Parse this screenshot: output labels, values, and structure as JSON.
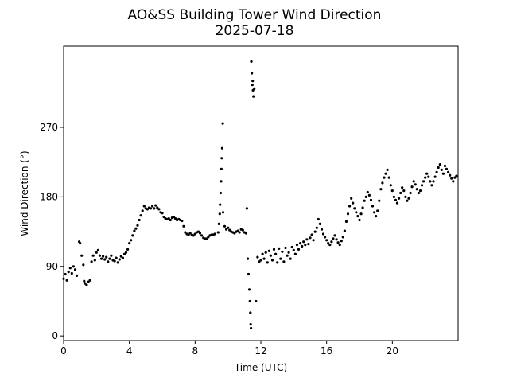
{
  "chart_data": {
    "type": "scatter",
    "title": "AO&SS Building Tower Wind Direction",
    "subtitle": "2025-07-18",
    "xlabel": "Time (UTC)",
    "ylabel": "Wind Direction (°)",
    "xlim": [
      0,
      24
    ],
    "ylim": [
      -6,
      375
    ],
    "xticks": [
      0,
      4,
      8,
      12,
      16,
      20
    ],
    "yticks": [
      0,
      90,
      180,
      270
    ],
    "grid": false,
    "legend": "none",
    "marker_color": "#000000",
    "series": [
      {
        "points": [
          [
            0.0,
            74
          ],
          [
            0.1,
            80
          ],
          [
            0.2,
            72
          ],
          [
            0.3,
            83
          ],
          [
            0.4,
            88
          ],
          [
            0.5,
            81
          ],
          [
            0.6,
            90
          ],
          [
            0.7,
            86
          ],
          [
            0.8,
            78
          ],
          [
            0.95,
            122
          ],
          [
            1.0,
            120
          ],
          [
            1.1,
            104
          ],
          [
            1.2,
            92
          ],
          [
            1.25,
            71
          ],
          [
            1.3,
            68
          ],
          [
            1.4,
            66
          ],
          [
            1.5,
            70
          ],
          [
            1.6,
            72
          ],
          [
            1.7,
            96
          ],
          [
            1.8,
            104
          ],
          [
            1.9,
            98
          ],
          [
            2.0,
            108
          ],
          [
            2.1,
            111
          ],
          [
            2.2,
            104
          ],
          [
            2.3,
            100
          ],
          [
            2.4,
            103
          ],
          [
            2.5,
            99
          ],
          [
            2.6,
            102
          ],
          [
            2.7,
            96
          ],
          [
            2.8,
            100
          ],
          [
            2.9,
            104
          ],
          [
            3.0,
            98
          ],
          [
            3.1,
            97
          ],
          [
            3.2,
            101
          ],
          [
            3.3,
            95
          ],
          [
            3.4,
            99
          ],
          [
            3.5,
            103
          ],
          [
            3.6,
            101
          ],
          [
            3.7,
            106
          ],
          [
            3.8,
            108
          ],
          [
            3.9,
            112
          ],
          [
            4.0,
            120
          ],
          [
            4.1,
            124
          ],
          [
            4.2,
            130
          ],
          [
            4.3,
            136
          ],
          [
            4.4,
            139
          ],
          [
            4.5,
            143
          ],
          [
            4.6,
            150
          ],
          [
            4.7,
            156
          ],
          [
            4.8,
            162
          ],
          [
            4.9,
            168
          ],
          [
            5.0,
            165
          ],
          [
            5.1,
            164
          ],
          [
            5.2,
            166
          ],
          [
            5.3,
            165
          ],
          [
            5.4,
            168
          ],
          [
            5.5,
            165
          ],
          [
            5.6,
            169
          ],
          [
            5.7,
            166
          ],
          [
            5.8,
            164
          ],
          [
            5.9,
            160
          ],
          [
            6.0,
            159
          ],
          [
            6.1,
            154
          ],
          [
            6.2,
            152
          ],
          [
            6.3,
            151
          ],
          [
            6.4,
            152
          ],
          [
            6.5,
            150
          ],
          [
            6.6,
            153
          ],
          [
            6.7,
            154
          ],
          [
            6.8,
            152
          ],
          [
            6.9,
            150
          ],
          [
            7.0,
            151
          ],
          [
            7.1,
            150
          ],
          [
            7.2,
            149
          ],
          [
            7.3,
            142
          ],
          [
            7.4,
            134
          ],
          [
            7.5,
            132
          ],
          [
            7.6,
            131
          ],
          [
            7.7,
            133
          ],
          [
            7.8,
            131
          ],
          [
            7.9,
            130
          ],
          [
            8.0,
            132
          ],
          [
            8.1,
            134
          ],
          [
            8.2,
            135
          ],
          [
            8.3,
            133
          ],
          [
            8.4,
            130
          ],
          [
            8.5,
            127
          ],
          [
            8.6,
            126
          ],
          [
            8.7,
            126
          ],
          [
            8.8,
            128
          ],
          [
            8.9,
            130
          ],
          [
            9.0,
            131
          ],
          [
            9.1,
            131
          ],
          [
            9.2,
            132
          ],
          [
            9.4,
            134
          ],
          [
            9.45,
            145
          ],
          [
            9.5,
            158
          ],
          [
            9.52,
            170
          ],
          [
            9.55,
            185
          ],
          [
            9.58,
            200
          ],
          [
            9.6,
            216
          ],
          [
            9.62,
            230
          ],
          [
            9.65,
            243
          ],
          [
            9.68,
            275
          ],
          [
            9.7,
            160
          ],
          [
            9.8,
            142
          ],
          [
            9.9,
            138
          ],
          [
            10.0,
            140
          ],
          [
            10.1,
            137
          ],
          [
            10.2,
            135
          ],
          [
            10.3,
            134
          ],
          [
            10.4,
            133
          ],
          [
            10.5,
            135
          ],
          [
            10.6,
            136
          ],
          [
            10.7,
            134
          ],
          [
            10.8,
            138
          ],
          [
            10.9,
            137
          ],
          [
            11.0,
            134
          ],
          [
            11.1,
            133
          ],
          [
            11.15,
            165
          ],
          [
            11.2,
            100
          ],
          [
            11.25,
            80
          ],
          [
            11.3,
            60
          ],
          [
            11.33,
            45
          ],
          [
            11.36,
            30
          ],
          [
            11.38,
            15
          ],
          [
            11.4,
            10
          ],
          [
            11.42,
            355
          ],
          [
            11.45,
            340
          ],
          [
            11.48,
            325
          ],
          [
            11.5,
            330
          ],
          [
            11.52,
            318
          ],
          [
            11.55,
            310
          ],
          [
            11.6,
            320
          ],
          [
            11.7,
            45
          ],
          [
            11.8,
            102
          ],
          [
            11.9,
            96
          ],
          [
            12.0,
            98
          ],
          [
            12.1,
            106
          ],
          [
            12.2,
            100
          ],
          [
            12.3,
            108
          ],
          [
            12.4,
            95
          ],
          [
            12.5,
            110
          ],
          [
            12.6,
            104
          ],
          [
            12.7,
            98
          ],
          [
            12.8,
            112
          ],
          [
            12.9,
            106
          ],
          [
            13.0,
            95
          ],
          [
            13.1,
            113
          ],
          [
            13.2,
            100
          ],
          [
            13.3,
            109
          ],
          [
            13.4,
            96
          ],
          [
            13.5,
            114
          ],
          [
            13.6,
            104
          ],
          [
            13.7,
            108
          ],
          [
            13.8,
            100
          ],
          [
            13.9,
            115
          ],
          [
            14.0,
            111
          ],
          [
            14.1,
            106
          ],
          [
            14.2,
            118
          ],
          [
            14.3,
            112
          ],
          [
            14.4,
            120
          ],
          [
            14.5,
            116
          ],
          [
            14.6,
            122
          ],
          [
            14.7,
            118
          ],
          [
            14.8,
            125
          ],
          [
            14.9,
            119
          ],
          [
            15.0,
            127
          ],
          [
            15.1,
            131
          ],
          [
            15.2,
            124
          ],
          [
            15.3,
            135
          ],
          [
            15.4,
            140
          ],
          [
            15.5,
            151
          ],
          [
            15.6,
            145
          ],
          [
            15.7,
            138
          ],
          [
            15.8,
            132
          ],
          [
            15.9,
            128
          ],
          [
            16.0,
            124
          ],
          [
            16.1,
            120
          ],
          [
            16.2,
            118
          ],
          [
            16.3,
            122
          ],
          [
            16.4,
            126
          ],
          [
            16.5,
            130
          ],
          [
            16.6,
            125
          ],
          [
            16.7,
            121
          ],
          [
            16.8,
            118
          ],
          [
            16.9,
            123
          ],
          [
            17.0,
            128
          ],
          [
            17.1,
            136
          ],
          [
            17.2,
            148
          ],
          [
            17.3,
            158
          ],
          [
            17.4,
            168
          ],
          [
            17.5,
            178
          ],
          [
            17.6,
            172
          ],
          [
            17.7,
            165
          ],
          [
            17.8,
            160
          ],
          [
            17.9,
            155
          ],
          [
            18.0,
            150
          ],
          [
            18.1,
            158
          ],
          [
            18.2,
            166
          ],
          [
            18.3,
            175
          ],
          [
            18.4,
            180
          ],
          [
            18.5,
            186
          ],
          [
            18.6,
            182
          ],
          [
            18.7,
            176
          ],
          [
            18.8,
            168
          ],
          [
            18.9,
            160
          ],
          [
            19.0,
            155
          ],
          [
            19.1,
            162
          ],
          [
            19.2,
            175
          ],
          [
            19.3,
            190
          ],
          [
            19.4,
            198
          ],
          [
            19.5,
            205
          ],
          [
            19.6,
            210
          ],
          [
            19.7,
            215
          ],
          [
            19.8,
            205
          ],
          [
            19.9,
            195
          ],
          [
            20.0,
            188
          ],
          [
            20.1,
            180
          ],
          [
            20.2,
            176
          ],
          [
            20.3,
            172
          ],
          [
            20.4,
            178
          ],
          [
            20.5,
            185
          ],
          [
            20.6,
            192
          ],
          [
            20.7,
            188
          ],
          [
            20.8,
            180
          ],
          [
            20.9,
            175
          ],
          [
            21.0,
            178
          ],
          [
            21.1,
            185
          ],
          [
            21.2,
            193
          ],
          [
            21.3,
            200
          ],
          [
            21.4,
            196
          ],
          [
            21.5,
            190
          ],
          [
            21.6,
            185
          ],
          [
            21.7,
            188
          ],
          [
            21.8,
            195
          ],
          [
            21.9,
            200
          ],
          [
            22.0,
            205
          ],
          [
            22.1,
            210
          ],
          [
            22.2,
            206
          ],
          [
            22.3,
            200
          ],
          [
            22.4,
            195
          ],
          [
            22.5,
            200
          ],
          [
            22.6,
            206
          ],
          [
            22.7,
            212
          ],
          [
            22.8,
            218
          ],
          [
            22.9,
            222
          ],
          [
            23.0,
            215
          ],
          [
            23.1,
            210
          ],
          [
            23.2,
            220
          ],
          [
            23.3,
            216
          ],
          [
            23.4,
            212
          ],
          [
            23.5,
            208
          ],
          [
            23.6,
            204
          ],
          [
            23.7,
            200
          ],
          [
            23.8,
            205
          ],
          [
            23.9,
            207
          ]
        ]
      }
    ]
  }
}
